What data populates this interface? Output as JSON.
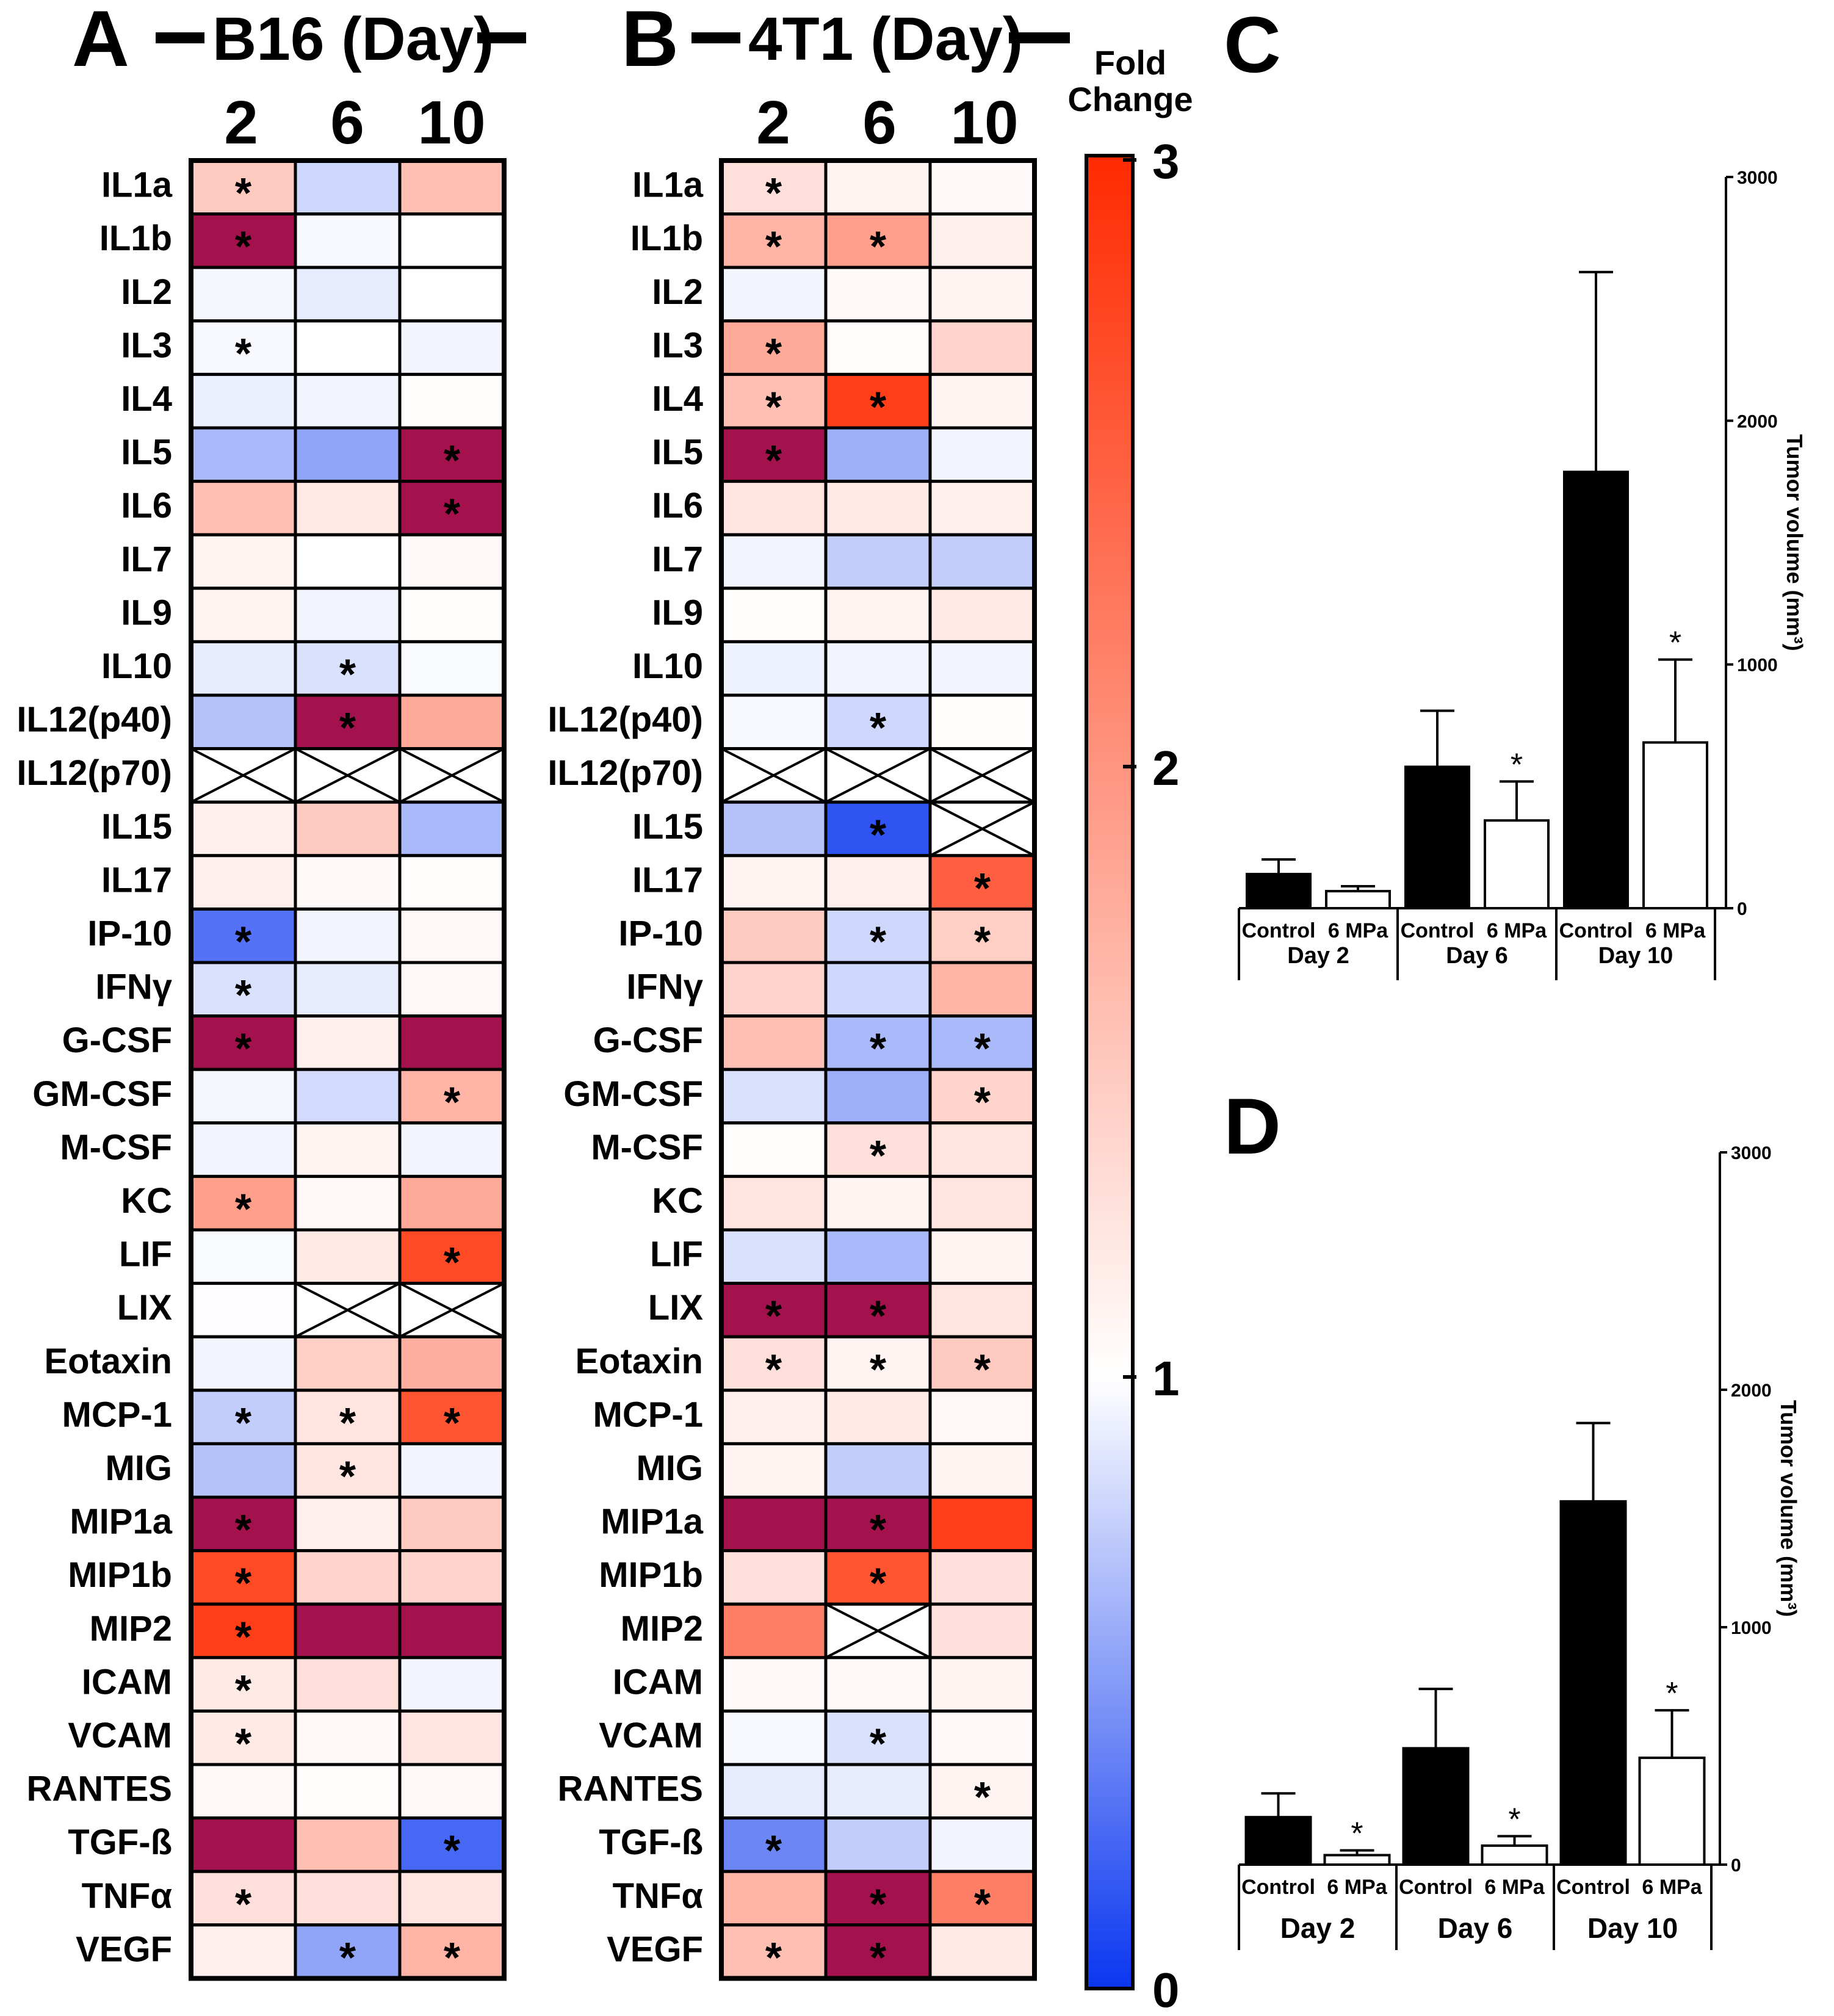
{
  "panel_A": {
    "letter": "A",
    "title": "B16 (Day)",
    "days": [
      "2",
      "6",
      "10"
    ]
  },
  "panel_B": {
    "letter": "B",
    "title": "4T1 (Day)",
    "days": [
      "2",
      "6",
      "10"
    ]
  },
  "colorbar": {
    "title_line1": "Fold",
    "title_line2": "Change",
    "ticks": [
      "3",
      "2",
      "1",
      "0"
    ],
    "colors": {
      "low": "#0a36f0",
      "mid": "#ffffff",
      "high": "#ff2a00",
      "max_saturated": "#a4124e"
    }
  },
  "panel_C": {
    "letter": "C",
    "ylabel": "Tumor volume (mm³)",
    "yticks": [
      "3000",
      "2000",
      "1000",
      "0"
    ],
    "bar_labels": [
      "Control",
      "6 MPa",
      "Control",
      "6 MPa",
      "Control",
      "6 MPa"
    ],
    "groups": [
      "Day 2",
      "Day 6",
      "Day 10"
    ]
  },
  "panel_D": {
    "letter": "D",
    "ylabel": "Tumor volume (mm³)",
    "yticks": [
      "3000",
      "2000",
      "1000",
      "0"
    ],
    "bar_labels": [
      "Control",
      "6 MPa",
      "Control",
      "6 MPa",
      "Control",
      "6 MPa"
    ],
    "groups": [
      "Day 2",
      "Day 6",
      "Day 10"
    ]
  },
  "chart_data": [
    {
      "type": "heatmap",
      "title": "B16 (Day)",
      "columns": [
        "2",
        "6",
        "10"
      ],
      "rows": [
        "IL1a",
        "IL1b",
        "IL2",
        "IL3",
        "IL4",
        "IL5",
        "IL6",
        "IL7",
        "IL9",
        "IL10",
        "IL12(p40)",
        "IL12(p70)",
        "IL15",
        "IL17",
        "IP-10",
        "IFNγ",
        "G-CSF",
        "GM-CSF",
        "M-CSF",
        "KC",
        "LIF",
        "LIX",
        "Eotaxin",
        "MCP-1",
        "MIG",
        "MIP1a",
        "MIP1b",
        "MIP2",
        "ICAM",
        "VCAM",
        "RANTES",
        "TGF-ß",
        "TNFα",
        "VEGF"
      ],
      "fold_change": [
        [
          1.5,
          0.8,
          1.6
        ],
        [
          3.5,
          0.97,
          1.0
        ],
        [
          0.96,
          0.9,
          1.0
        ],
        [
          0.97,
          1.0,
          0.95
        ],
        [
          0.92,
          0.95,
          1.02
        ],
        [
          0.65,
          0.55,
          3.5
        ],
        [
          1.6,
          1.2,
          3.5
        ],
        [
          1.1,
          1.0,
          1.05
        ],
        [
          1.1,
          0.95,
          1.02
        ],
        [
          0.9,
          0.85,
          0.98
        ],
        [
          0.7,
          3.5,
          1.8
        ],
        [
          null,
          null,
          null
        ],
        [
          1.15,
          1.5,
          0.65
        ],
        [
          1.15,
          1.05,
          1.03
        ],
        [
          0.3,
          0.95,
          1.07
        ],
        [
          0.85,
          0.9,
          1.07
        ],
        [
          3.5,
          1.15,
          3.5
        ],
        [
          0.96,
          0.82,
          1.7
        ],
        [
          0.95,
          1.1,
          0.95
        ],
        [
          1.9,
          1.07,
          1.8
        ],
        [
          0.98,
          1.2,
          2.7
        ],
        [
          0.99,
          null,
          null
        ],
        [
          0.95,
          1.45,
          1.75
        ],
        [
          0.75,
          1.25,
          2.6
        ],
        [
          0.7,
          1.25,
          0.95
        ],
        [
          3.5,
          1.15,
          1.5
        ],
        [
          2.7,
          1.4,
          1.4
        ],
        [
          2.8,
          3.5,
          3.5
        ],
        [
          1.2,
          1.3,
          0.95
        ],
        [
          1.2,
          1.05,
          1.25
        ],
        [
          1.05,
          1.03,
          1.07
        ],
        [
          3.5,
          1.6,
          0.25
        ],
        [
          1.3,
          1.3,
          1.25
        ],
        [
          1.15,
          0.55,
          1.7
        ]
      ],
      "significant": [
        [
          true,
          false,
          false
        ],
        [
          true,
          false,
          false
        ],
        [
          false,
          false,
          false
        ],
        [
          true,
          false,
          false
        ],
        [
          false,
          false,
          false
        ],
        [
          false,
          false,
          true
        ],
        [
          false,
          false,
          true
        ],
        [
          false,
          false,
          false
        ],
        [
          false,
          false,
          false
        ],
        [
          false,
          true,
          false
        ],
        [
          false,
          true,
          false
        ],
        [
          false,
          false,
          false
        ],
        [
          false,
          false,
          false
        ],
        [
          false,
          false,
          false
        ],
        [
          true,
          false,
          false
        ],
        [
          true,
          false,
          false
        ],
        [
          true,
          false,
          false
        ],
        [
          false,
          false,
          true
        ],
        [
          false,
          false,
          false
        ],
        [
          true,
          false,
          false
        ],
        [
          false,
          false,
          true
        ],
        [
          false,
          false,
          false
        ],
        [
          false,
          false,
          false
        ],
        [
          true,
          true,
          true
        ],
        [
          false,
          true,
          false
        ],
        [
          true,
          false,
          false
        ],
        [
          true,
          false,
          false
        ],
        [
          true,
          false,
          false
        ],
        [
          true,
          false,
          false
        ],
        [
          true,
          false,
          false
        ],
        [
          false,
          false,
          false
        ],
        [
          false,
          false,
          true
        ],
        [
          true,
          false,
          false
        ],
        [
          false,
          true,
          true
        ]
      ],
      "missing_marker": "crossed box"
    },
    {
      "type": "heatmap",
      "title": "4T1 (Day)",
      "columns": [
        "2",
        "6",
        "10"
      ],
      "rows": [
        "IL1a",
        "IL1b",
        "IL2",
        "IL3",
        "IL4",
        "IL5",
        "IL6",
        "IL7",
        "IL9",
        "IL10",
        "IL12(p40)",
        "IL12(p70)",
        "IL15",
        "IL17",
        "IP-10",
        "IFNγ",
        "G-CSF",
        "GM-CSF",
        "M-CSF",
        "KC",
        "LIF",
        "LIX",
        "Eotaxin",
        "MCP-1",
        "MIG",
        "MIP1a",
        "MIP1b",
        "MIP2",
        "ICAM",
        "VCAM",
        "RANTES",
        "TGF-ß",
        "TNFα",
        "VEGF"
      ],
      "fold_change": [
        [
          1.3,
          1.1,
          1.05
        ],
        [
          1.7,
          1.9,
          1.15
        ],
        [
          0.95,
          1.05,
          1.1
        ],
        [
          1.8,
          1.03,
          1.4
        ],
        [
          1.6,
          2.8,
          1.1
        ],
        [
          3.5,
          0.6,
          0.95
        ],
        [
          1.25,
          1.2,
          1.15
        ],
        [
          0.95,
          0.75,
          0.75
        ],
        [
          1.02,
          1.1,
          1.2
        ],
        [
          0.93,
          0.95,
          0.95
        ],
        [
          0.97,
          0.8,
          1.03
        ],
        [
          null,
          null,
          null
        ],
        [
          0.7,
          0.15,
          null
        ],
        [
          1.1,
          1.15,
          2.5
        ],
        [
          1.5,
          0.8,
          1.45
        ],
        [
          1.4,
          0.8,
          1.7
        ],
        [
          1.6,
          0.65,
          0.65
        ],
        [
          0.85,
          0.6,
          1.4
        ],
        [
          1.02,
          1.3,
          1.25
        ],
        [
          1.25,
          1.1,
          1.25
        ],
        [
          0.85,
          0.65,
          1.1
        ],
        [
          3.5,
          3.5,
          1.25
        ],
        [
          1.3,
          1.1,
          1.5
        ],
        [
          1.15,
          1.2,
          1.07
        ],
        [
          1.1,
          0.75,
          1.1
        ],
        [
          3.5,
          3.5,
          2.8
        ],
        [
          1.3,
          2.6,
          1.3
        ],
        [
          2.2,
          null,
          1.3
        ],
        [
          1.05,
          1.05,
          1.1
        ],
        [
          0.97,
          0.85,
          1.05
        ],
        [
          0.9,
          0.9,
          1.1
        ],
        [
          0.4,
          0.75,
          0.95
        ],
        [
          1.7,
          3.5,
          2.2
        ],
        [
          1.6,
          3.5,
          1.2
        ]
      ],
      "significant": [
        [
          true,
          false,
          false
        ],
        [
          true,
          true,
          false
        ],
        [
          false,
          false,
          false
        ],
        [
          true,
          false,
          false
        ],
        [
          true,
          true,
          false
        ],
        [
          true,
          false,
          false
        ],
        [
          false,
          false,
          false
        ],
        [
          false,
          false,
          false
        ],
        [
          false,
          false,
          false
        ],
        [
          false,
          false,
          false
        ],
        [
          false,
          true,
          false
        ],
        [
          false,
          false,
          false
        ],
        [
          false,
          true,
          false
        ],
        [
          false,
          false,
          true
        ],
        [
          false,
          true,
          true
        ],
        [
          false,
          false,
          false
        ],
        [
          false,
          true,
          true
        ],
        [
          false,
          false,
          true
        ],
        [
          false,
          true,
          false
        ],
        [
          false,
          false,
          false
        ],
        [
          false,
          false,
          false
        ],
        [
          true,
          true,
          false
        ],
        [
          true,
          true,
          true
        ],
        [
          false,
          false,
          false
        ],
        [
          false,
          false,
          false
        ],
        [
          false,
          true,
          false
        ],
        [
          false,
          true,
          false
        ],
        [
          false,
          false,
          false
        ],
        [
          false,
          false,
          false
        ],
        [
          false,
          true,
          false
        ],
        [
          false,
          false,
          true
        ],
        [
          true,
          false,
          false
        ],
        [
          false,
          true,
          true
        ],
        [
          true,
          true,
          false
        ]
      ],
      "missing_marker": "crossed box"
    },
    {
      "type": "bar",
      "ylabel": "Tumor volume (mm³)",
      "ylim": [
        0,
        3000
      ],
      "categories": [
        "Control",
        "6 MPa",
        "Control",
        "6 MPa",
        "Control",
        "6 MPa"
      ],
      "groups": [
        "Day 2",
        "Day 6",
        "Day 10"
      ],
      "values": [
        140,
        70,
        580,
        360,
        1790,
        680
      ],
      "errors": [
        60,
        20,
        230,
        160,
        820,
        340
      ],
      "fill": [
        "#000000",
        "#ffffff",
        "#000000",
        "#ffffff",
        "#000000",
        "#ffffff"
      ],
      "significant": [
        false,
        false,
        false,
        true,
        false,
        true
      ]
    },
    {
      "type": "bar",
      "ylabel": "Tumor volume (mm³)",
      "ylim": [
        0,
        3000
      ],
      "categories": [
        "Control",
        "6 MPa",
        "Control",
        "6 MPa",
        "Control",
        "6 MPa"
      ],
      "groups": [
        "Day 2",
        "Day 6",
        "Day 10"
      ],
      "values": [
        200,
        40,
        490,
        80,
        1530,
        450
      ],
      "errors": [
        100,
        20,
        250,
        40,
        330,
        200
      ],
      "fill": [
        "#000000",
        "#ffffff",
        "#000000",
        "#ffffff",
        "#000000",
        "#ffffff"
      ],
      "significant": [
        false,
        true,
        false,
        true,
        false,
        true
      ]
    }
  ]
}
